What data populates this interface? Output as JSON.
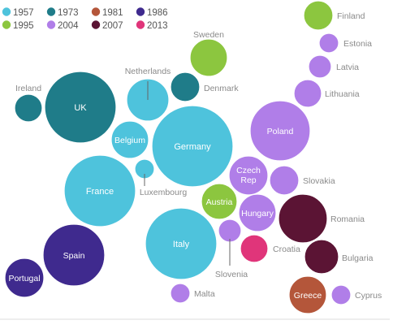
{
  "chart_data": {
    "type": "bubble",
    "title": "",
    "legend_placement": "top-left",
    "legend": [
      {
        "year": "1957",
        "color": "#4ec3dc"
      },
      {
        "year": "1973",
        "color": "#1f7c89"
      },
      {
        "year": "1981",
        "color": "#b4563a"
      },
      {
        "year": "1986",
        "color": "#3f2a8e"
      },
      {
        "year": "1995",
        "color": "#8cc63f"
      },
      {
        "year": "2004",
        "color": "#b07ee8"
      },
      {
        "year": "2007",
        "color": "#5b1434"
      },
      {
        "year": "2013",
        "color": "#e0357a"
      }
    ],
    "countries": [
      {
        "name": "Finland",
        "year": "1995"
      },
      {
        "name": "Estonia",
        "year": "2004"
      },
      {
        "name": "Sweden",
        "year": "1995"
      },
      {
        "name": "Latvia",
        "year": "2004"
      },
      {
        "name": "Netherlands",
        "year": "1957"
      },
      {
        "name": "Denmark",
        "year": "1973"
      },
      {
        "name": "Lithuania",
        "year": "2004"
      },
      {
        "name": "Ireland",
        "year": "1973"
      },
      {
        "name": "UK",
        "year": "1973"
      },
      {
        "name": "Poland",
        "year": "2004"
      },
      {
        "name": "Belgium",
        "year": "1957"
      },
      {
        "name": "Germany",
        "year": "1957"
      },
      {
        "name": "Luxembourg",
        "year": "1957"
      },
      {
        "name": "Czech Rep",
        "year": "2004"
      },
      {
        "name": "Slovakia",
        "year": "2004"
      },
      {
        "name": "France",
        "year": "1957"
      },
      {
        "name": "Austria",
        "year": "1995"
      },
      {
        "name": "Hungary",
        "year": "2004"
      },
      {
        "name": "Romania",
        "year": "2007"
      },
      {
        "name": "Slovenia",
        "year": "2004"
      },
      {
        "name": "Croatia",
        "year": "2013"
      },
      {
        "name": "Italy",
        "year": "1957"
      },
      {
        "name": "Spain",
        "year": "1986"
      },
      {
        "name": "Bulgaria",
        "year": "2007"
      },
      {
        "name": "Portugal",
        "year": "1986"
      },
      {
        "name": "Greece",
        "year": "1981"
      },
      {
        "name": "Malta",
        "year": "2004"
      },
      {
        "name": "Cyprus",
        "year": "2004"
      }
    ]
  }
}
